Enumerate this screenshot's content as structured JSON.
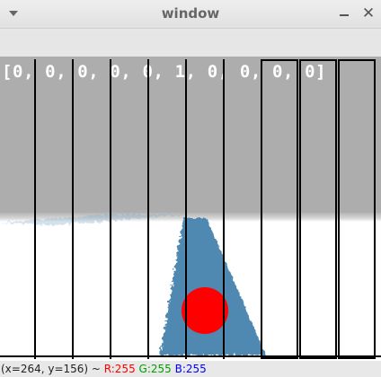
{
  "window": {
    "title": "window"
  },
  "overlay": {
    "array_text": "[0, 0, 0, 0, 0, 1, 0, 0, 0, 0]"
  },
  "colors": {
    "marker": "#ff0000",
    "road": "#3f7fab",
    "sky": "#adadad",
    "ground": "#ffffff"
  },
  "status": {
    "coords": "(x=264, y=156) ~ ",
    "r_label": "R:255",
    "g_label": "G:255",
    "b_label": "B:255"
  }
}
